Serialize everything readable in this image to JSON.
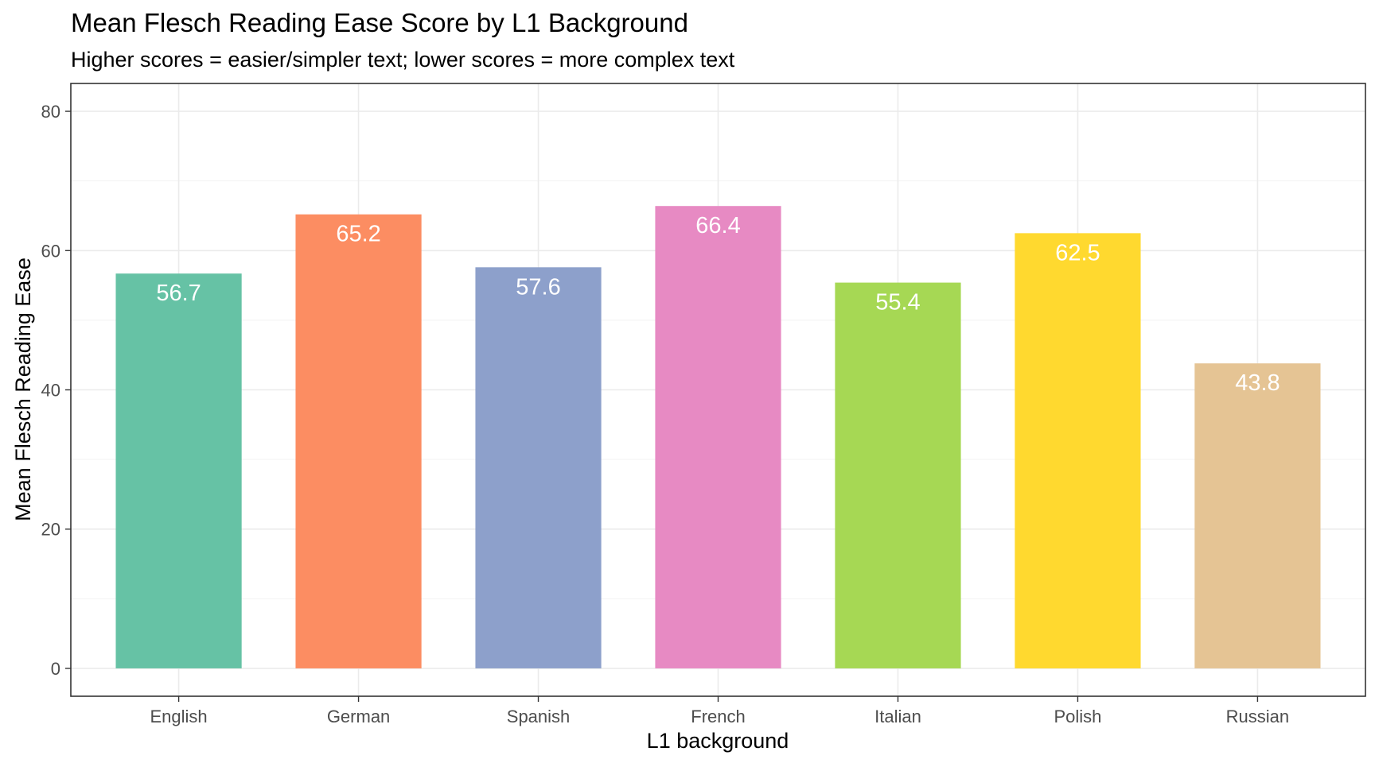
{
  "chart_data": {
    "type": "bar",
    "title": "Mean Flesch Reading Ease Score by L1 Background",
    "subtitle": "Higher scores = easier/simpler text; lower scores = more complex text",
    "xlabel": "L1 background",
    "ylabel": "Mean Flesch Reading Ease",
    "categories": [
      "English",
      "German",
      "Spanish",
      "French",
      "Italian",
      "Polish",
      "Russian"
    ],
    "values": [
      56.7,
      65.2,
      57.6,
      66.4,
      55.4,
      62.5,
      43.8
    ],
    "value_labels": [
      "56.7",
      "65.2",
      "57.6",
      "66.4",
      "55.4",
      "62.5",
      "43.8"
    ],
    "colors": [
      "#66c2a5",
      "#fc8d62",
      "#8da0cb",
      "#e78ac3",
      "#a6d854",
      "#ffd92f",
      "#e5c494"
    ],
    "ylim": [
      -4,
      84
    ],
    "yticks": [
      0,
      20,
      40,
      60,
      80
    ],
    "ytick_labels": [
      "0",
      "20",
      "40",
      "60",
      "80"
    ],
    "grid": true,
    "legend": "none"
  }
}
